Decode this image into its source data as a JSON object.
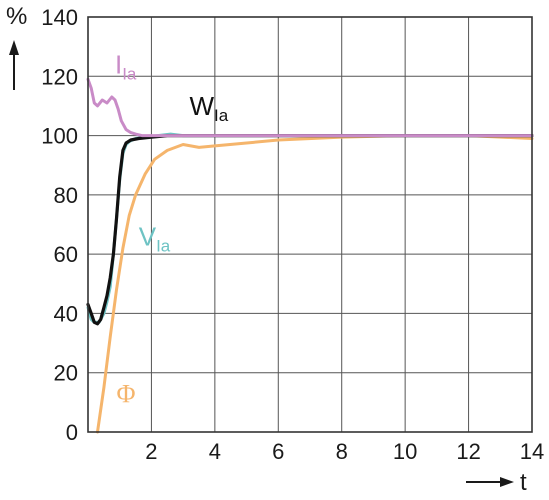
{
  "chart_data": {
    "type": "line",
    "title": "",
    "xlabel": "t",
    "ylabel": "%",
    "xlim": [
      0,
      14
    ],
    "ylim": [
      0,
      140
    ],
    "x_ticks": [
      2,
      4,
      6,
      8,
      10,
      12,
      14
    ],
    "y_ticks": [
      0,
      20,
      40,
      60,
      80,
      100,
      120,
      140
    ],
    "grid": true,
    "series": [
      {
        "name": "Φ",
        "label_main": "Φ",
        "label_sub": "",
        "color": "#f5b56c",
        "x": [
          0.3,
          0.5,
          0.7,
          0.9,
          1.1,
          1.3,
          1.5,
          1.8,
          2.1,
          2.5,
          3.0,
          3.5,
          4.0,
          5.0,
          6.0,
          8.0,
          10.0,
          12.0,
          14.0
        ],
        "y": [
          0,
          15,
          32,
          48,
          62,
          73,
          80,
          87,
          92,
          95,
          97,
          96,
          96.5,
          97.5,
          98.5,
          99.5,
          100,
          100,
          99
        ]
      },
      {
        "name": "VIa",
        "label_main": "V",
        "label_sub": "Ia",
        "color": "#6ec3c4",
        "x": [
          0.0,
          0.1,
          0.2,
          0.35,
          0.5,
          0.6,
          0.7,
          0.8,
          0.9,
          1.0,
          1.1,
          1.2,
          1.3,
          1.5,
          1.8,
          2.2,
          2.6,
          3.0,
          4.0,
          6.0,
          10.0,
          14.0
        ],
        "y": [
          42,
          38,
          37,
          37,
          40,
          44,
          49,
          60,
          72,
          85,
          94,
          97,
          98,
          99,
          99.5,
          100,
          100.5,
          100,
          100,
          100,
          100,
          100
        ]
      },
      {
        "name": "WIa",
        "label_main": "W",
        "label_sub": "Ia",
        "color": "#111111",
        "x": [
          0.0,
          0.1,
          0.2,
          0.3,
          0.4,
          0.5,
          0.6,
          0.7,
          0.8,
          0.9,
          1.0,
          1.1,
          1.2,
          1.35,
          1.6,
          2.0,
          2.5,
          3.0,
          4.0,
          6.0,
          10.0,
          14.0
        ],
        "y": [
          43,
          40,
          37,
          36.5,
          38,
          42,
          46,
          52,
          60,
          72,
          86,
          95,
          97.5,
          98.5,
          99,
          99.5,
          100,
          100,
          100,
          100,
          100,
          100
        ]
      },
      {
        "name": "IIa",
        "label_main": "I",
        "label_sub": "Ia",
        "color": "#c98bc7",
        "x": [
          0.0,
          0.1,
          0.2,
          0.3,
          0.45,
          0.6,
          0.75,
          0.85,
          0.95,
          1.05,
          1.2,
          1.35,
          1.5,
          1.7,
          2.0,
          2.4,
          3.0,
          4.0,
          6.0,
          10.0,
          14.0
        ],
        "y": [
          119,
          116,
          111,
          110,
          112,
          111,
          113,
          112,
          109,
          105,
          102,
          101,
          100.5,
          100,
          100,
          100,
          100,
          100,
          100,
          100,
          100
        ]
      }
    ]
  }
}
